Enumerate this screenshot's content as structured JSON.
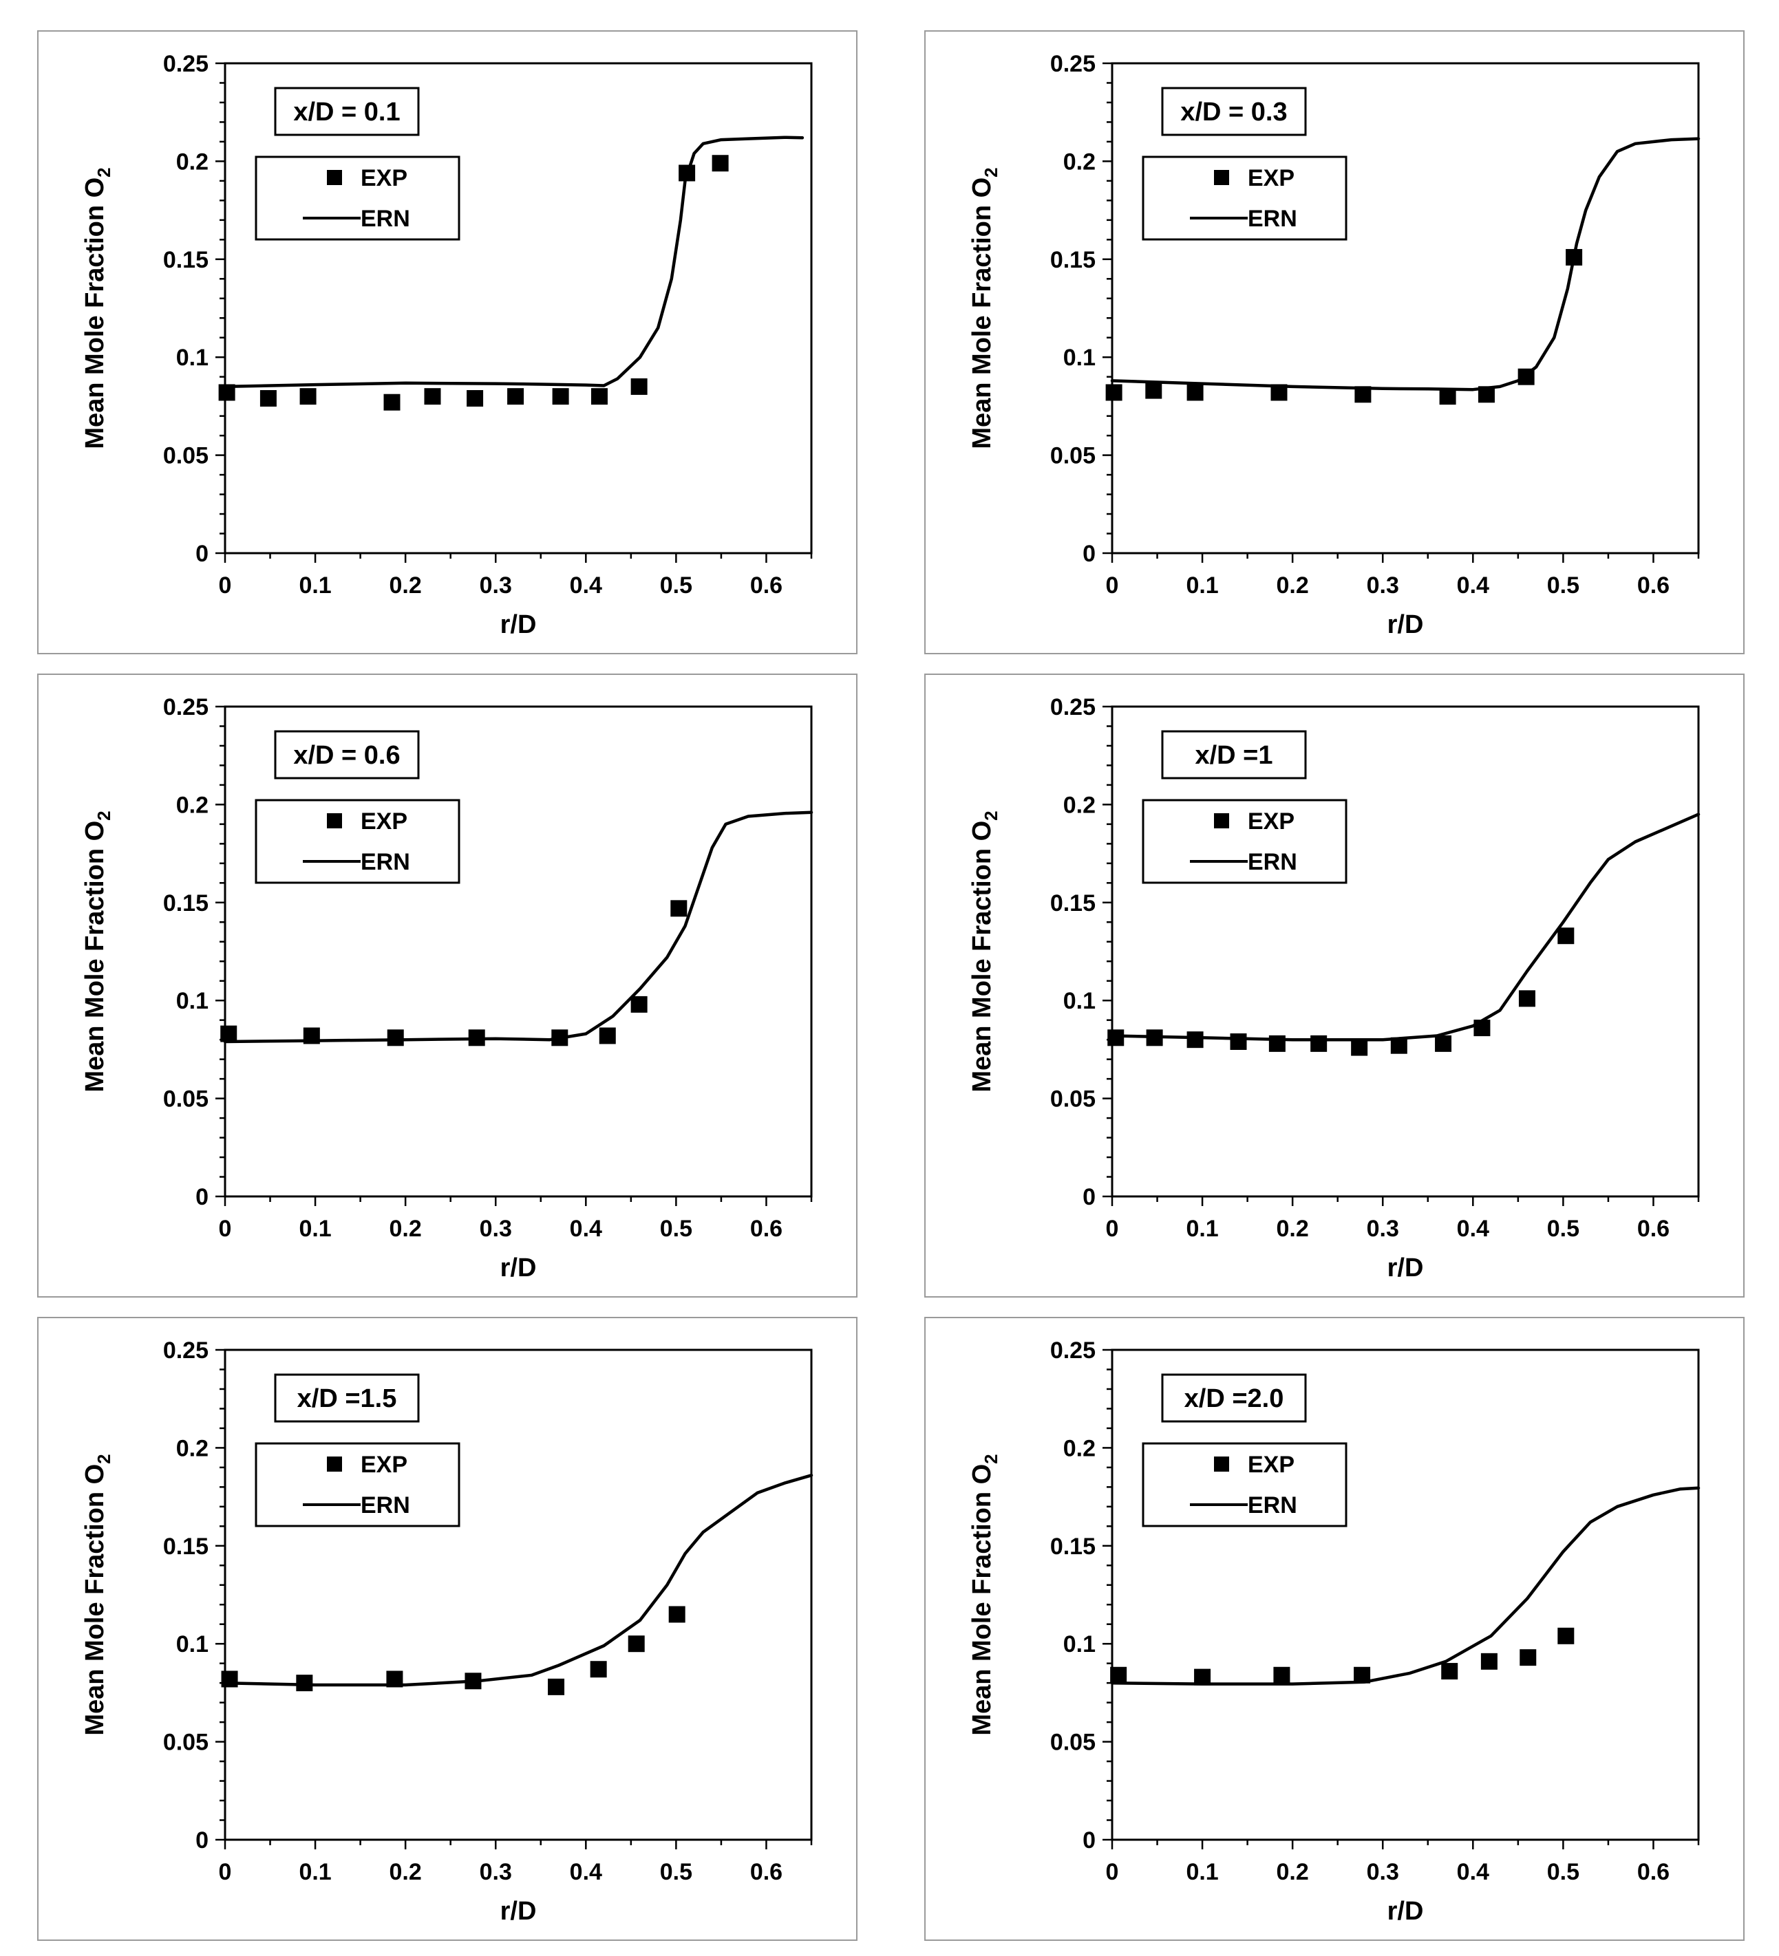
{
  "figure": {
    "background": "#ffffff",
    "ink": "#000000"
  },
  "chart_data": [
    {
      "type": "line",
      "annotation": "x/D = 0.1",
      "xlabel": "r/D",
      "ylabel_main": "Mean Mole Fraction O",
      "ylabel_sub": "2",
      "xlim": [
        0,
        0.65
      ],
      "ylim": [
        0,
        0.25
      ],
      "xticks": [
        "0",
        "0.1",
        "0.2",
        "0.3",
        "0.4",
        "0.5",
        "0.6"
      ],
      "yticks": [
        "0",
        "0.05",
        "0.1",
        "0.15",
        "0.2",
        "0.25"
      ],
      "legend": {
        "position": "upper-left",
        "entries": [
          "EXP",
          "ERN"
        ]
      },
      "series": [
        {
          "name": "EXP",
          "kind": "marker-square",
          "points": [
            [
              0.002,
              0.082
            ],
            [
              0.048,
              0.079
            ],
            [
              0.092,
              0.08
            ],
            [
              0.185,
              0.077
            ],
            [
              0.23,
              0.08
            ],
            [
              0.277,
              0.079
            ],
            [
              0.322,
              0.08
            ],
            [
              0.372,
              0.08
            ],
            [
              0.415,
              0.08
            ],
            [
              0.459,
              0.085
            ],
            [
              0.512,
              0.194
            ],
            [
              0.549,
              0.199
            ]
          ]
        },
        {
          "name": "ERN",
          "kind": "line",
          "points": [
            [
              0,
              0.085
            ],
            [
              0.05,
              0.0855
            ],
            [
              0.1,
              0.086
            ],
            [
              0.2,
              0.0868
            ],
            [
              0.3,
              0.0865
            ],
            [
              0.35,
              0.0862
            ],
            [
              0.4,
              0.0858
            ],
            [
              0.42,
              0.0855
            ],
            [
              0.435,
              0.089
            ],
            [
              0.46,
              0.1
            ],
            [
              0.48,
              0.115
            ],
            [
              0.495,
              0.14
            ],
            [
              0.505,
              0.17
            ],
            [
              0.51,
              0.19
            ],
            [
              0.52,
              0.204
            ],
            [
              0.53,
              0.209
            ],
            [
              0.55,
              0.211
            ],
            [
              0.58,
              0.2115
            ],
            [
              0.62,
              0.2122
            ],
            [
              0.64,
              0.212
            ]
          ]
        }
      ]
    },
    {
      "type": "line",
      "annotation": "x/D = 0.3",
      "xlabel": "r/D",
      "ylabel_main": "Mean Mole Fraction O",
      "ylabel_sub": "2",
      "xlim": [
        0,
        0.65
      ],
      "ylim": [
        0,
        0.25
      ],
      "xticks": [
        "0",
        "0.1",
        "0.2",
        "0.3",
        "0.4",
        "0.5",
        "0.6"
      ],
      "yticks": [
        "0",
        "0.05",
        "0.1",
        "0.15",
        "0.2",
        "0.25"
      ],
      "legend": {
        "position": "upper-left",
        "entries": [
          "EXP",
          "ERN"
        ]
      },
      "series": [
        {
          "name": "EXP",
          "kind": "marker-square",
          "points": [
            [
              0.002,
              0.082
            ],
            [
              0.046,
              0.083
            ],
            [
              0.092,
              0.082
            ],
            [
              0.185,
              0.082
            ],
            [
              0.278,
              0.081
            ],
            [
              0.372,
              0.08
            ],
            [
              0.415,
              0.081
            ],
            [
              0.459,
              0.09
            ],
            [
              0.512,
              0.151
            ]
          ]
        },
        {
          "name": "ERN",
          "kind": "line",
          "points": [
            [
              0,
              0.088
            ],
            [
              0.1,
              0.0865
            ],
            [
              0.2,
              0.085
            ],
            [
              0.3,
              0.084
            ],
            [
              0.35,
              0.0838
            ],
            [
              0.4,
              0.0835
            ],
            [
              0.43,
              0.085
            ],
            [
              0.45,
              0.088
            ],
            [
              0.47,
              0.095
            ],
            [
              0.49,
              0.11
            ],
            [
              0.505,
              0.135
            ],
            [
              0.515,
              0.158
            ],
            [
              0.525,
              0.175
            ],
            [
              0.54,
              0.192
            ],
            [
              0.56,
              0.205
            ],
            [
              0.58,
              0.209
            ],
            [
              0.62,
              0.211
            ],
            [
              0.65,
              0.2115
            ]
          ]
        }
      ]
    },
    {
      "type": "line",
      "annotation": "x/D = 0.6",
      "xlabel": "r/D",
      "ylabel_main": "Mean Mole Fraction O",
      "ylabel_sub": "2",
      "xlim": [
        0,
        0.65
      ],
      "ylim": [
        0,
        0.25
      ],
      "xticks": [
        "0",
        "0.1",
        "0.2",
        "0.3",
        "0.4",
        "0.5",
        "0.6"
      ],
      "yticks": [
        "0",
        "0.05",
        "0.1",
        "0.15",
        "0.2",
        "0.25"
      ],
      "legend": {
        "position": "upper-left",
        "entries": [
          "EXP",
          "ERN"
        ]
      },
      "series": [
        {
          "name": "EXP",
          "kind": "marker-square",
          "points": [
            [
              0.004,
              0.083
            ],
            [
              0.096,
              0.082
            ],
            [
              0.189,
              0.081
            ],
            [
              0.279,
              0.081
            ],
            [
              0.371,
              0.081
            ],
            [
              0.424,
              0.082
            ],
            [
              0.459,
              0.098
            ],
            [
              0.503,
              0.147
            ]
          ]
        },
        {
          "name": "ERN",
          "kind": "line",
          "points": [
            [
              0,
              0.079
            ],
            [
              0.1,
              0.0795
            ],
            [
              0.2,
              0.08
            ],
            [
              0.3,
              0.0805
            ],
            [
              0.36,
              0.08
            ],
            [
              0.4,
              0.083
            ],
            [
              0.43,
              0.092
            ],
            [
              0.46,
              0.106
            ],
            [
              0.49,
              0.122
            ],
            [
              0.51,
              0.138
            ],
            [
              0.525,
              0.158
            ],
            [
              0.54,
              0.178
            ],
            [
              0.555,
              0.19
            ],
            [
              0.58,
              0.194
            ],
            [
              0.62,
              0.1955
            ],
            [
              0.65,
              0.196
            ]
          ]
        }
      ]
    },
    {
      "type": "line",
      "annotation": "x/D =1",
      "xlabel": "r/D",
      "ylabel_main": "Mean Mole Fraction O",
      "ylabel_sub": "2",
      "xlim": [
        0,
        0.65
      ],
      "ylim": [
        0,
        0.25
      ],
      "xticks": [
        "0",
        "0.1",
        "0.2",
        "0.3",
        "0.4",
        "0.5",
        "0.6"
      ],
      "yticks": [
        "0",
        "0.05",
        "0.1",
        "0.15",
        "0.2",
        "0.25"
      ],
      "legend": {
        "position": "upper-left",
        "entries": [
          "EXP",
          "ERN"
        ]
      },
      "series": [
        {
          "name": "EXP",
          "kind": "marker-square",
          "points": [
            [
              0.004,
              0.081
            ],
            [
              0.047,
              0.081
            ],
            [
              0.092,
              0.08
            ],
            [
              0.14,
              0.079
            ],
            [
              0.183,
              0.078
            ],
            [
              0.229,
              0.078
            ],
            [
              0.274,
              0.076
            ],
            [
              0.318,
              0.077
            ],
            [
              0.367,
              0.078
            ],
            [
              0.41,
              0.086
            ],
            [
              0.46,
              0.101
            ],
            [
              0.503,
              0.133
            ]
          ]
        },
        {
          "name": "ERN",
          "kind": "line",
          "points": [
            [
              0,
              0.082
            ],
            [
              0.1,
              0.081
            ],
            [
              0.2,
              0.08
            ],
            [
              0.3,
              0.08
            ],
            [
              0.36,
              0.082
            ],
            [
              0.4,
              0.087
            ],
            [
              0.43,
              0.095
            ],
            [
              0.46,
              0.115
            ],
            [
              0.5,
              0.14
            ],
            [
              0.53,
              0.16
            ],
            [
              0.55,
              0.172
            ],
            [
              0.58,
              0.181
            ],
            [
              0.62,
              0.189
            ],
            [
              0.65,
              0.195
            ]
          ]
        }
      ]
    },
    {
      "type": "line",
      "annotation": "x/D =1.5",
      "xlabel": "r/D",
      "ylabel_main": "Mean Mole Fraction O",
      "ylabel_sub": "2",
      "xlim": [
        0,
        0.65
      ],
      "ylim": [
        0,
        0.25
      ],
      "xticks": [
        "0",
        "0.1",
        "0.2",
        "0.3",
        "0.4",
        "0.5",
        "0.6"
      ],
      "yticks": [
        "0",
        "0.05",
        "0.1",
        "0.15",
        "0.2",
        "0.25"
      ],
      "legend": {
        "position": "upper-left",
        "entries": [
          "EXP",
          "ERN"
        ]
      },
      "series": [
        {
          "name": "EXP",
          "kind": "marker-square",
          "points": [
            [
              0.005,
              0.082
            ],
            [
              0.088,
              0.08
            ],
            [
              0.188,
              0.082
            ],
            [
              0.275,
              0.081
            ],
            [
              0.367,
              0.078
            ],
            [
              0.414,
              0.087
            ],
            [
              0.456,
              0.1
            ],
            [
              0.501,
              0.115
            ]
          ]
        },
        {
          "name": "ERN",
          "kind": "line",
          "points": [
            [
              0,
              0.08
            ],
            [
              0.1,
              0.079
            ],
            [
              0.2,
              0.079
            ],
            [
              0.28,
              0.081
            ],
            [
              0.34,
              0.084
            ],
            [
              0.37,
              0.089
            ],
            [
              0.42,
              0.099
            ],
            [
              0.46,
              0.112
            ],
            [
              0.49,
              0.13
            ],
            [
              0.51,
              0.146
            ],
            [
              0.53,
              0.157
            ],
            [
              0.56,
              0.167
            ],
            [
              0.59,
              0.177
            ],
            [
              0.62,
              0.182
            ],
            [
              0.65,
              0.186
            ]
          ]
        }
      ]
    },
    {
      "type": "line",
      "annotation": "x/D =2.0",
      "xlabel": "r/D",
      "ylabel_main": "Mean Mole Fraction O",
      "ylabel_sub": "2",
      "xlim": [
        0,
        0.65
      ],
      "ylim": [
        0,
        0.25
      ],
      "xticks": [
        "0",
        "0.1",
        "0.2",
        "0.3",
        "0.4",
        "0.5",
        "0.6"
      ],
      "yticks": [
        "0",
        "0.05",
        "0.1",
        "0.15",
        "0.2",
        "0.25"
      ],
      "legend": {
        "position": "upper-left",
        "entries": [
          "EXP",
          "ERN"
        ]
      },
      "series": [
        {
          "name": "EXP",
          "kind": "marker-square",
          "points": [
            [
              0.007,
              0.084
            ],
            [
              0.1,
              0.083
            ],
            [
              0.188,
              0.084
            ],
            [
              0.277,
              0.084
            ],
            [
              0.374,
              0.086
            ],
            [
              0.418,
              0.091
            ],
            [
              0.461,
              0.093
            ],
            [
              0.503,
              0.104
            ]
          ]
        },
        {
          "name": "ERN",
          "kind": "line",
          "points": [
            [
              0,
              0.08
            ],
            [
              0.1,
              0.0795
            ],
            [
              0.2,
              0.0795
            ],
            [
              0.28,
              0.0805
            ],
            [
              0.33,
              0.085
            ],
            [
              0.37,
              0.091
            ],
            [
              0.42,
              0.104
            ],
            [
              0.46,
              0.123
            ],
            [
              0.5,
              0.147
            ],
            [
              0.53,
              0.162
            ],
            [
              0.56,
              0.17
            ],
            [
              0.6,
              0.176
            ],
            [
              0.63,
              0.179
            ],
            [
              0.65,
              0.1795
            ]
          ]
        }
      ]
    }
  ]
}
